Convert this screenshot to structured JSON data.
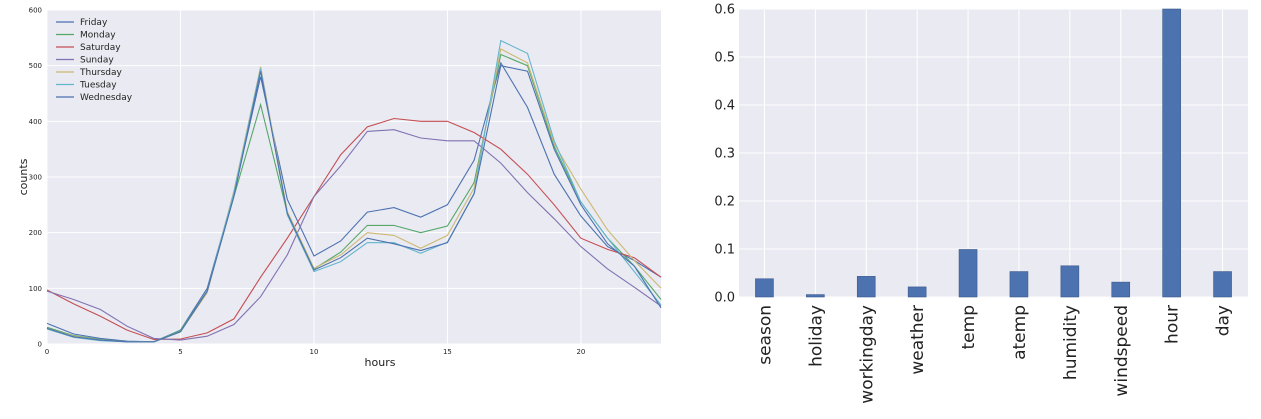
{
  "chart_data": [
    {
      "type": "line",
      "title": "",
      "xlabel": "hours",
      "ylabel": "counts",
      "xlim": [
        0,
        23
      ],
      "ylim": [
        0,
        600
      ],
      "xticks": [
        0,
        5,
        10,
        15,
        20
      ],
      "yticks": [
        0,
        100,
        200,
        300,
        400,
        500,
        600
      ],
      "grid": true,
      "legend": "top-left",
      "x": [
        0,
        1,
        2,
        3,
        4,
        5,
        6,
        7,
        8,
        9,
        10,
        11,
        12,
        13,
        14,
        15,
        16,
        17,
        18,
        19,
        20,
        21,
        22,
        23
      ],
      "series": [
        {
          "name": "Friday",
          "color": "#4c72b0",
          "values": [
            37,
            18,
            10,
            5,
            4,
            25,
            100,
            270,
            480,
            260,
            158,
            185,
            237,
            245,
            228,
            250,
            330,
            505,
            425,
            305,
            230,
            175,
            150,
            120
          ]
        },
        {
          "name": "Monday",
          "color": "#55a868",
          "values": [
            30,
            15,
            8,
            4,
            4,
            24,
            95,
            265,
            430,
            235,
            135,
            165,
            213,
            213,
            200,
            212,
            290,
            520,
            500,
            355,
            255,
            190,
            140,
            80
          ]
        },
        {
          "name": "Saturday",
          "color": "#c44e52",
          "values": [
            97,
            72,
            50,
            25,
            8,
            9,
            20,
            45,
            120,
            190,
            265,
            340,
            390,
            405,
            400,
            400,
            380,
            350,
            305,
            250,
            190,
            170,
            155,
            120
          ]
        },
        {
          "name": "Sunday",
          "color": "#8172b2",
          "values": [
            95,
            80,
            62,
            32,
            10,
            7,
            14,
            35,
            85,
            160,
            265,
            320,
            382,
            385,
            370,
            365,
            365,
            325,
            272,
            225,
            175,
            135,
            102,
            68
          ]
        },
        {
          "name": "Thursday",
          "color": "#ccb974",
          "values": [
            28,
            14,
            7,
            4,
            4,
            22,
            92,
            275,
            498,
            238,
            136,
            160,
            200,
            195,
            172,
            195,
            280,
            530,
            505,
            360,
            278,
            205,
            150,
            100
          ]
        },
        {
          "name": "Tuesday",
          "color": "#64b5cd",
          "values": [
            27,
            12,
            6,
            4,
            4,
            22,
            95,
            272,
            495,
            232,
            130,
            148,
            182,
            182,
            163,
            183,
            270,
            545,
            522,
            365,
            255,
            190,
            130,
            70
          ]
        },
        {
          "name": "Wednesday",
          "color": "#4c72b0",
          "values": [
            28,
            13,
            7,
            4,
            4,
            22,
            95,
            265,
            490,
            235,
            133,
            155,
            190,
            180,
            168,
            182,
            270,
            500,
            490,
            350,
            250,
            180,
            140,
            65
          ]
        }
      ]
    },
    {
      "type": "bar",
      "title": "",
      "xlabel": "",
      "ylabel": "",
      "ylim": [
        0,
        0.6
      ],
      "yticks": [
        "0.0",
        "0.1",
        "0.2",
        "0.3",
        "0.4",
        "0.5",
        "0.6"
      ],
      "grid": true,
      "bar_color": "#4c72b0",
      "categories": [
        "season",
        "holiday",
        "workingday",
        "weather",
        "temp",
        "atemp",
        "humidity",
        "windspeed",
        "hour",
        "day"
      ],
      "values": [
        0.038,
        0.005,
        0.043,
        0.021,
        0.099,
        0.053,
        0.065,
        0.031,
        0.6,
        0.053
      ]
    }
  ]
}
